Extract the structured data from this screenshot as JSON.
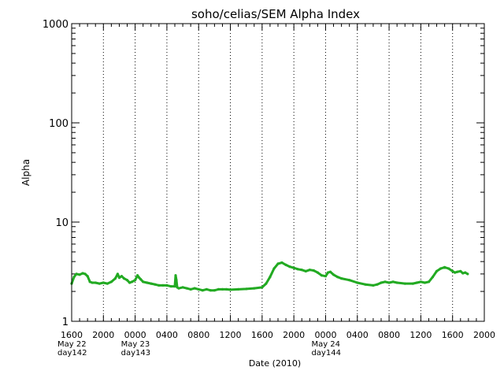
{
  "chart_data": {
    "type": "line",
    "title": "soho/celias/SEM Alpha Index",
    "xlabel": "Date (2010)",
    "ylabel": "Alpha",
    "yscale": "log",
    "ylim": [
      1,
      1000
    ],
    "y_ticks": [
      {
        "value": 1,
        "label": "1"
      },
      {
        "value": 10,
        "label": "10"
      },
      {
        "value": 100,
        "label": "100"
      },
      {
        "value": 1000,
        "label": "1000"
      }
    ],
    "x_unit": "hours since 2010-05-22 16:00",
    "xlim": [
      0,
      52
    ],
    "x_ticks": [
      {
        "value": 0,
        "label": "1600",
        "date_label": "May 22",
        "doy_label": "day142"
      },
      {
        "value": 4,
        "label": "2000"
      },
      {
        "value": 8,
        "label": "0000",
        "date_label": "May 23",
        "doy_label": "day143"
      },
      {
        "value": 12,
        "label": "0400"
      },
      {
        "value": 16,
        "label": "0800"
      },
      {
        "value": 20,
        "label": "1200"
      },
      {
        "value": 24,
        "label": "1600"
      },
      {
        "value": 28,
        "label": "2000"
      },
      {
        "value": 32,
        "label": "0000",
        "date_label": "May 24",
        "doy_label": "day144"
      },
      {
        "value": 36,
        "label": "0400"
      },
      {
        "value": 40,
        "label": "0800"
      },
      {
        "value": 44,
        "label": "1200"
      },
      {
        "value": 48,
        "label": "1600"
      },
      {
        "value": 52,
        "label": "2000"
      }
    ],
    "grid": "vertical-dotted",
    "series": [
      {
        "name": "Alpha",
        "color": "#22aa22",
        "x": [
          0.0,
          0.3,
          0.6,
          1.0,
          1.4,
          1.7,
          2.0,
          2.3,
          2.6,
          3.0,
          3.5,
          4.0,
          4.5,
          5.0,
          5.5,
          5.8,
          6.0,
          6.3,
          6.6,
          7.0,
          7.3,
          7.6,
          8.0,
          8.3,
          8.5,
          8.7,
          9.0,
          9.5,
          10.0,
          10.5,
          11.0,
          11.5,
          12.0,
          12.5,
          13.0,
          13.1,
          13.2,
          13.3,
          13.5,
          14.0,
          14.5,
          15.0,
          15.5,
          16.0,
          16.5,
          17.0,
          17.5,
          18.0,
          18.5,
          19.0,
          19.5,
          20.0,
          21.0,
          22.0,
          23.0,
          24.0,
          24.5,
          25.0,
          25.5,
          26.0,
          26.5,
          27.0,
          27.5,
          28.0,
          28.5,
          29.0,
          29.5,
          30.0,
          30.5,
          31.0,
          31.5,
          32.0,
          32.3,
          32.6,
          33.0,
          33.5,
          34.0,
          35.0,
          36.0,
          37.0,
          38.0,
          38.5,
          39.0,
          39.5,
          40.0,
          40.5,
          41.0,
          42.0,
          43.0,
          43.5,
          44.0,
          44.5,
          45.0,
          45.5,
          46.0,
          46.5,
          47.0,
          47.5,
          48.0,
          48.3,
          48.6,
          49.0,
          49.3,
          49.6,
          49.9
        ],
        "values": [
          2.4,
          2.8,
          3.0,
          2.95,
          3.05,
          3.0,
          2.85,
          2.5,
          2.45,
          2.45,
          2.4,
          2.45,
          2.4,
          2.5,
          2.7,
          3.0,
          2.75,
          2.85,
          2.7,
          2.6,
          2.45,
          2.5,
          2.6,
          2.9,
          2.75,
          2.65,
          2.5,
          2.45,
          2.4,
          2.35,
          2.3,
          2.3,
          2.3,
          2.25,
          2.25,
          2.9,
          2.6,
          2.2,
          2.15,
          2.2,
          2.15,
          2.1,
          2.15,
          2.1,
          2.05,
          2.1,
          2.05,
          2.05,
          2.1,
          2.1,
          2.1,
          2.08,
          2.1,
          2.12,
          2.15,
          2.2,
          2.4,
          2.8,
          3.4,
          3.8,
          3.9,
          3.7,
          3.55,
          3.45,
          3.35,
          3.3,
          3.2,
          3.3,
          3.25,
          3.1,
          2.9,
          2.85,
          3.1,
          3.15,
          2.95,
          2.8,
          2.7,
          2.6,
          2.45,
          2.35,
          2.3,
          2.35,
          2.45,
          2.5,
          2.45,
          2.5,
          2.45,
          2.4,
          2.4,
          2.45,
          2.5,
          2.45,
          2.5,
          2.8,
          3.2,
          3.4,
          3.5,
          3.4,
          3.2,
          3.1,
          3.15,
          3.2,
          3.05,
          3.1,
          3.0
        ]
      }
    ]
  }
}
